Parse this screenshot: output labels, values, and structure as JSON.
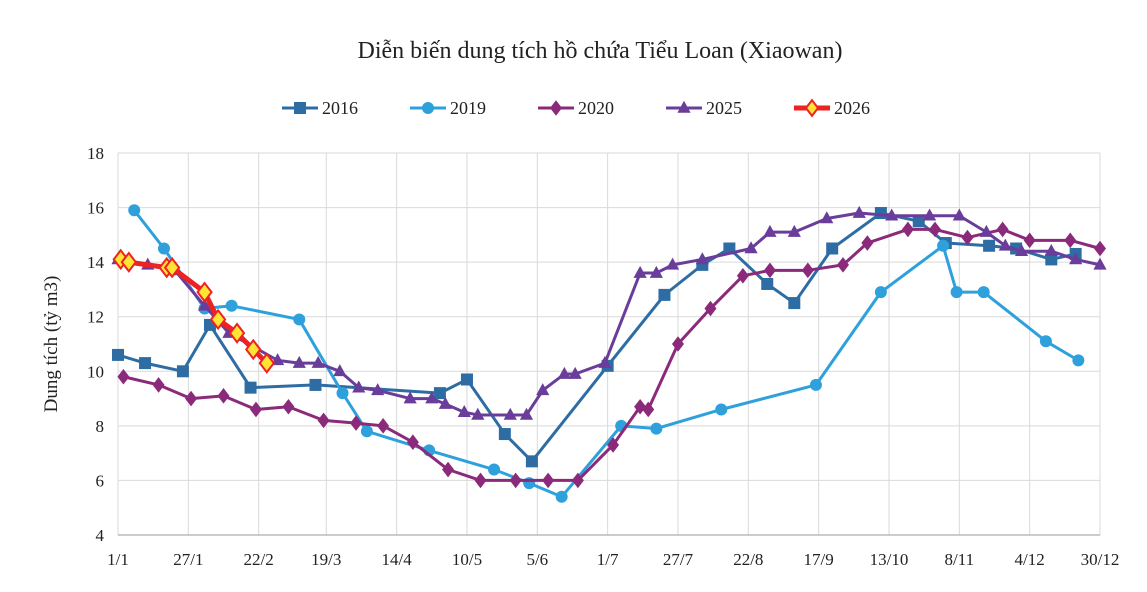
{
  "chart_data": {
    "type": "line",
    "title": "Diễn biến dung tích hồ chứa Tiểu Loan (Xiaowan)",
    "y_label": "Dung tích (tỷ m3)",
    "grid": true,
    "legend": "top",
    "xlim": [
      0,
      363
    ],
    "xticks": [
      {
        "value": 0,
        "label": "1/1"
      },
      {
        "value": 26,
        "label": "27/1"
      },
      {
        "value": 52,
        "label": "22/2"
      },
      {
        "value": 77,
        "label": "19/3"
      },
      {
        "value": 103,
        "label": "14/4"
      },
      {
        "value": 129,
        "label": "10/5"
      },
      {
        "value": 155,
        "label": "5/6"
      },
      {
        "value": 181,
        "label": "1/7"
      },
      {
        "value": 207,
        "label": "27/7"
      },
      {
        "value": 233,
        "label": "22/8"
      },
      {
        "value": 259,
        "label": "17/9"
      },
      {
        "value": 285,
        "label": "13/10"
      },
      {
        "value": 311,
        "label": "8/11"
      },
      {
        "value": 337,
        "label": "4/12"
      },
      {
        "value": 363,
        "label": "30/12"
      }
    ],
    "ylim": [
      4,
      18
    ],
    "yticks": [
      4,
      6,
      8,
      10,
      12,
      14,
      16,
      18
    ],
    "series": [
      {
        "name": "2016",
        "color": "#2e6da4",
        "marker": "square",
        "x": [
          0,
          10,
          24,
          34,
          49,
          73,
          119,
          129,
          143,
          153,
          181,
          202,
          216,
          226,
          240,
          250,
          264,
          282,
          296,
          306,
          322,
          332,
          345,
          354
        ],
        "values": [
          10.6,
          10.3,
          10.0,
          11.7,
          9.4,
          9.5,
          9.2,
          9.7,
          7.7,
          6.7,
          10.2,
          12.8,
          13.9,
          14.5,
          13.2,
          12.5,
          14.5,
          15.8,
          15.5,
          14.7,
          14.6,
          14.5,
          14.1,
          14.3
        ]
      },
      {
        "name": "2019",
        "color": "#2ea0dc",
        "marker": "circle",
        "x": [
          6,
          17,
          32,
          42,
          67,
          83,
          92,
          115,
          139,
          152,
          164,
          186,
          199,
          223,
          258,
          282,
          305,
          310,
          320,
          343,
          355
        ],
        "values": [
          15.9,
          14.5,
          12.3,
          12.4,
          11.9,
          9.2,
          7.8,
          7.1,
          6.4,
          5.9,
          5.4,
          8.0,
          7.9,
          8.6,
          9.5,
          12.9,
          14.6,
          12.9,
          12.9,
          11.1,
          10.4
        ]
      },
      {
        "name": "2020",
        "color": "#8b2a7a",
        "marker": "diamond",
        "x": [
          2,
          15,
          27,
          39,
          51,
          63,
          76,
          88,
          98,
          109,
          122,
          134,
          147,
          159,
          170,
          183,
          193,
          196,
          207,
          219,
          231,
          241,
          255,
          268,
          277,
          292,
          302,
          314,
          327,
          337,
          352,
          363
        ],
        "values": [
          9.8,
          9.5,
          9.0,
          9.1,
          8.6,
          8.7,
          8.2,
          8.1,
          8.0,
          7.4,
          6.4,
          6.0,
          6.0,
          6.0,
          6.0,
          7.3,
          8.7,
          8.6,
          11.0,
          12.3,
          13.5,
          13.7,
          13.7,
          13.9,
          14.7,
          15.2,
          15.2,
          14.9,
          15.2,
          14.8,
          14.8,
          14.5
        ]
      },
      {
        "name": "2025",
        "color": "#6a3d9a",
        "marker": "triangle",
        "x": [
          0,
          11,
          21,
          32,
          41,
          59,
          67,
          74,
          82,
          89,
          96,
          108,
          116,
          121,
          128,
          133,
          145,
          151,
          157,
          165,
          169,
          180,
          193,
          199,
          205,
          216,
          234,
          241,
          250,
          262,
          274,
          286,
          300,
          311,
          321,
          328,
          334,
          345,
          354,
          363
        ],
        "values": [
          14.1,
          13.9,
          13.7,
          12.4,
          11.4,
          10.4,
          10.3,
          10.3,
          10.0,
          9.4,
          9.3,
          9.0,
          9.0,
          8.8,
          8.5,
          8.4,
          8.4,
          8.4,
          9.3,
          9.9,
          9.9,
          10.3,
          13.6,
          13.6,
          13.9,
          14.1,
          14.5,
          15.1,
          15.1,
          15.6,
          15.8,
          15.7,
          15.7,
          15.7,
          15.1,
          14.6,
          14.4,
          14.4,
          14.1,
          13.9
        ]
      },
      {
        "name": "2026",
        "color": "#ee2222",
        "marker_color": "#ffe433",
        "marker": "diamond",
        "x": [
          1,
          4,
          18,
          20,
          32,
          37,
          44,
          50,
          55
        ],
        "values": [
          14.1,
          14.0,
          13.8,
          13.8,
          12.9,
          11.9,
          11.4,
          10.8,
          10.3
        ]
      }
    ]
  }
}
